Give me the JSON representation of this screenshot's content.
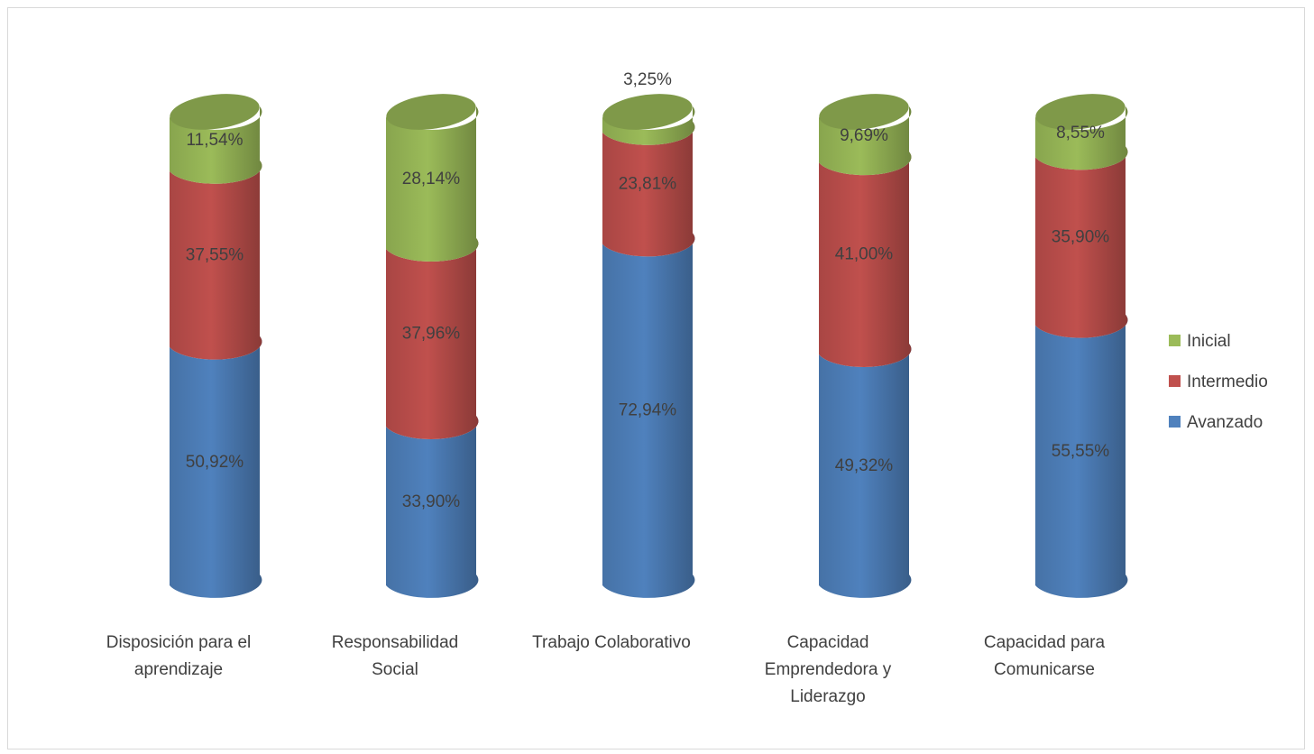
{
  "chart_data": {
    "type": "bar",
    "stacked": true,
    "style": "3d-cylinder",
    "categories": [
      [
        "Disposición para el",
        "aprendizaje"
      ],
      [
        "Responsabilidad",
        "Social"
      ],
      [
        "Trabajo Colaborativo"
      ],
      [
        "Capacidad",
        "Emprendedora y",
        "Liderazgo"
      ],
      [
        "Capacidad para",
        "Comunicarse"
      ]
    ],
    "series": [
      {
        "name": "Avanzado",
        "color": "#4f81bd",
        "values": [
          50.92,
          33.9,
          72.94,
          49.32,
          55.55
        ],
        "labels": [
          "50,92%",
          "33,90%",
          "72,94%",
          "49,32%",
          "55,55%"
        ]
      },
      {
        "name": "Intermedio",
        "color": "#c0504d",
        "values": [
          37.55,
          37.96,
          23.81,
          41.0,
          35.9
        ],
        "labels": [
          "37,55%",
          "37,96%",
          "23,81%",
          "41,00%",
          "35,90%"
        ]
      },
      {
        "name": "Inicial",
        "color": "#9bbb59",
        "values": [
          11.54,
          28.14,
          3.25,
          9.69,
          8.55
        ],
        "labels": [
          "11,54%",
          "28,14%",
          "3,25%",
          "9,69%",
          "8,55%"
        ]
      }
    ],
    "legend_order": [
      "Inicial",
      "Intermedio",
      "Avanzado"
    ],
    "legend_position": "right",
    "ylim": [
      0,
      100
    ],
    "grid": false,
    "title": "",
    "xlabel": "",
    "ylabel": ""
  }
}
